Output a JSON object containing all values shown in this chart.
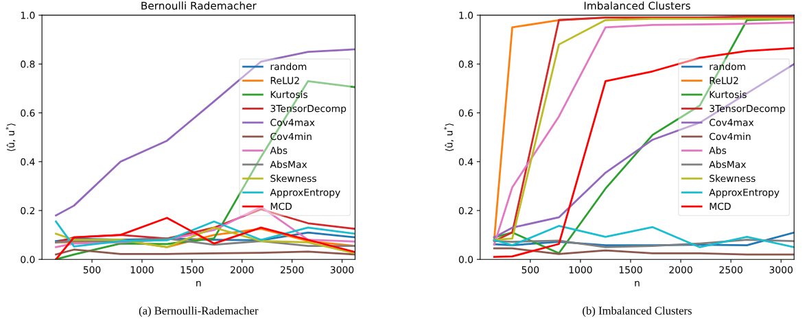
{
  "chart_data": [
    {
      "type": "line",
      "title": "Bernoulli Rademacher",
      "xlabel": "n",
      "ylabel": "⟨û, u$^{*}$⟩",
      "annotations": [
        "(a) Bernoulli-Rademacher"
      ],
      "x": [
        140,
        320,
        785,
        1250,
        1720,
        2190,
        2660,
        3130
      ],
      "xlim": [
        0,
        3130
      ],
      "xticks": [
        500,
        1000,
        1500,
        2000,
        2500,
        3000
      ],
      "ylim": [
        0,
        1
      ],
      "yticks": [
        {
          "value": 0,
          "label": "0.0"
        },
        {
          "value": 0.2,
          "label": "0.2"
        },
        {
          "value": 0.4,
          "label": "0.4"
        },
        {
          "value": 0.6,
          "label": "0.6"
        },
        {
          "value": 0.8,
          "label": "0.8"
        },
        {
          "value": 1,
          "label": "1.0"
        }
      ],
      "grid": false,
      "legend": "right",
      "line_style": "solid",
      "marker": "none",
      "series": [
        {
          "name": "random",
          "color": "#1f77b4",
          "values": [
            0.075,
            0.085,
            0.08,
            0.085,
            0.08,
            0.078,
            0.11,
            0.09
          ]
        },
        {
          "name": "ReLU2",
          "color": "#ff7f0e",
          "values": [
            0.07,
            0.07,
            0.078,
            0.05,
            0.1,
            0.125,
            0.075,
            0.055
          ]
        },
        {
          "name": "Kurtosis",
          "color": "#2ca02c",
          "values": [
            0.0,
            0.02,
            0.065,
            0.063,
            0.086,
            0.42,
            0.73,
            0.705
          ]
        },
        {
          "name": "3TensorDecomp",
          "color": "#d62728",
          "values": [
            0.07,
            0.09,
            0.1,
            0.085,
            0.13,
            0.205,
            0.148,
            0.125
          ]
        },
        {
          "name": "Cov4max",
          "color": "#9467bd",
          "values": [
            0.18,
            0.22,
            0.4,
            0.486,
            0.647,
            0.81,
            0.85,
            0.86
          ]
        },
        {
          "name": "Cov4min",
          "color": "#8c564b",
          "values": [
            0.02,
            0.04,
            0.022,
            0.022,
            0.025,
            0.027,
            0.032,
            0.02
          ]
        },
        {
          "name": "Abs",
          "color": "#e377c2",
          "values": [
            0.05,
            0.065,
            0.07,
            0.08,
            0.12,
            0.215,
            0.08,
            0.073
          ]
        },
        {
          "name": "AbsMax",
          "color": "#7f7f7f",
          "values": [
            0.07,
            0.075,
            0.075,
            0.085,
            0.06,
            0.075,
            0.055,
            0.055
          ]
        },
        {
          "name": "Skewness",
          "color": "#bcbd22",
          "values": [
            0.105,
            0.08,
            0.08,
            0.05,
            0.13,
            0.075,
            0.07,
            0.025
          ]
        },
        {
          "name": "ApproxEntropy",
          "color": "#17becf",
          "values": [
            0.155,
            0.053,
            0.075,
            0.078,
            0.155,
            0.08,
            0.13,
            0.105
          ]
        },
        {
          "name": "MCD",
          "color": "#ff0000",
          "values": [
            0.0,
            0.09,
            0.1,
            0.17,
            0.065,
            0.13,
            0.08,
            0.03
          ]
        }
      ]
    },
    {
      "type": "line",
      "title": "Imbalanced Clusters",
      "xlabel": "n",
      "ylabel": "⟨û, u$^{*}$⟩",
      "annotations": [
        "(b) Imbalanced Clusters"
      ],
      "x": [
        140,
        320,
        785,
        1250,
        1720,
        2190,
        2660,
        3130
      ],
      "xlim": [
        0,
        3130
      ],
      "xticks": [
        500,
        1000,
        1500,
        2000,
        2500,
        3000
      ],
      "ylim": [
        0,
        1
      ],
      "yticks": [
        {
          "value": 0,
          "label": "0.0"
        },
        {
          "value": 0.2,
          "label": "0.2"
        },
        {
          "value": 0.4,
          "label": "0.4"
        },
        {
          "value": 0.6,
          "label": "0.6"
        },
        {
          "value": 0.8,
          "label": "0.8"
        },
        {
          "value": 1,
          "label": "1.0"
        }
      ],
      "grid": false,
      "legend": "right",
      "line_style": "solid",
      "marker": "none",
      "series": [
        {
          "name": "random",
          "color": "#1f77b4",
          "values": [
            0.062,
            0.058,
            0.072,
            0.058,
            0.058,
            0.06,
            0.058,
            0.11
          ]
        },
        {
          "name": "ReLU2",
          "color": "#ff7f0e",
          "values": [
            0.08,
            0.95,
            0.98,
            0.99,
            0.99,
            0.99,
            0.99,
            0.99
          ]
        },
        {
          "name": "Kurtosis",
          "color": "#2ca02c",
          "values": [
            0.09,
            0.11,
            0.025,
            0.29,
            0.51,
            0.63,
            0.98,
            0.985
          ]
        },
        {
          "name": "3TensorDecomp",
          "color": "#d62728",
          "values": [
            0.075,
            0.11,
            0.98,
            0.99,
            0.99,
            0.99,
            0.995,
            0.995
          ]
        },
        {
          "name": "Cov4max",
          "color": "#9467bd",
          "values": [
            0.09,
            0.13,
            0.172,
            0.355,
            0.49,
            0.56,
            0.68,
            0.8
          ]
        },
        {
          "name": "Cov4min",
          "color": "#8c564b",
          "values": [
            0.045,
            0.045,
            0.022,
            0.037,
            0.025,
            0.025,
            0.02,
            0.02
          ]
        },
        {
          "name": "Abs",
          "color": "#e377c2",
          "values": [
            0.06,
            0.295,
            0.585,
            0.95,
            0.96,
            0.962,
            0.965,
            0.97
          ]
        },
        {
          "name": "AbsMax",
          "color": "#7f7f7f",
          "values": [
            0.075,
            0.072,
            0.077,
            0.05,
            0.055,
            0.065,
            0.08,
            0.075
          ]
        },
        {
          "name": "Skewness",
          "color": "#bcbd22",
          "values": [
            0.08,
            0.085,
            0.88,
            0.98,
            0.985,
            0.985,
            0.985,
            0.985
          ]
        },
        {
          "name": "ApproxEntropy",
          "color": "#17becf",
          "values": [
            0.08,
            0.058,
            0.137,
            0.092,
            0.132,
            0.05,
            0.092,
            0.05
          ]
        },
        {
          "name": "MCD",
          "color": "#ff0000",
          "values": [
            0.01,
            0.012,
            0.063,
            0.73,
            0.77,
            0.825,
            0.853,
            0.865
          ]
        }
      ]
    }
  ]
}
